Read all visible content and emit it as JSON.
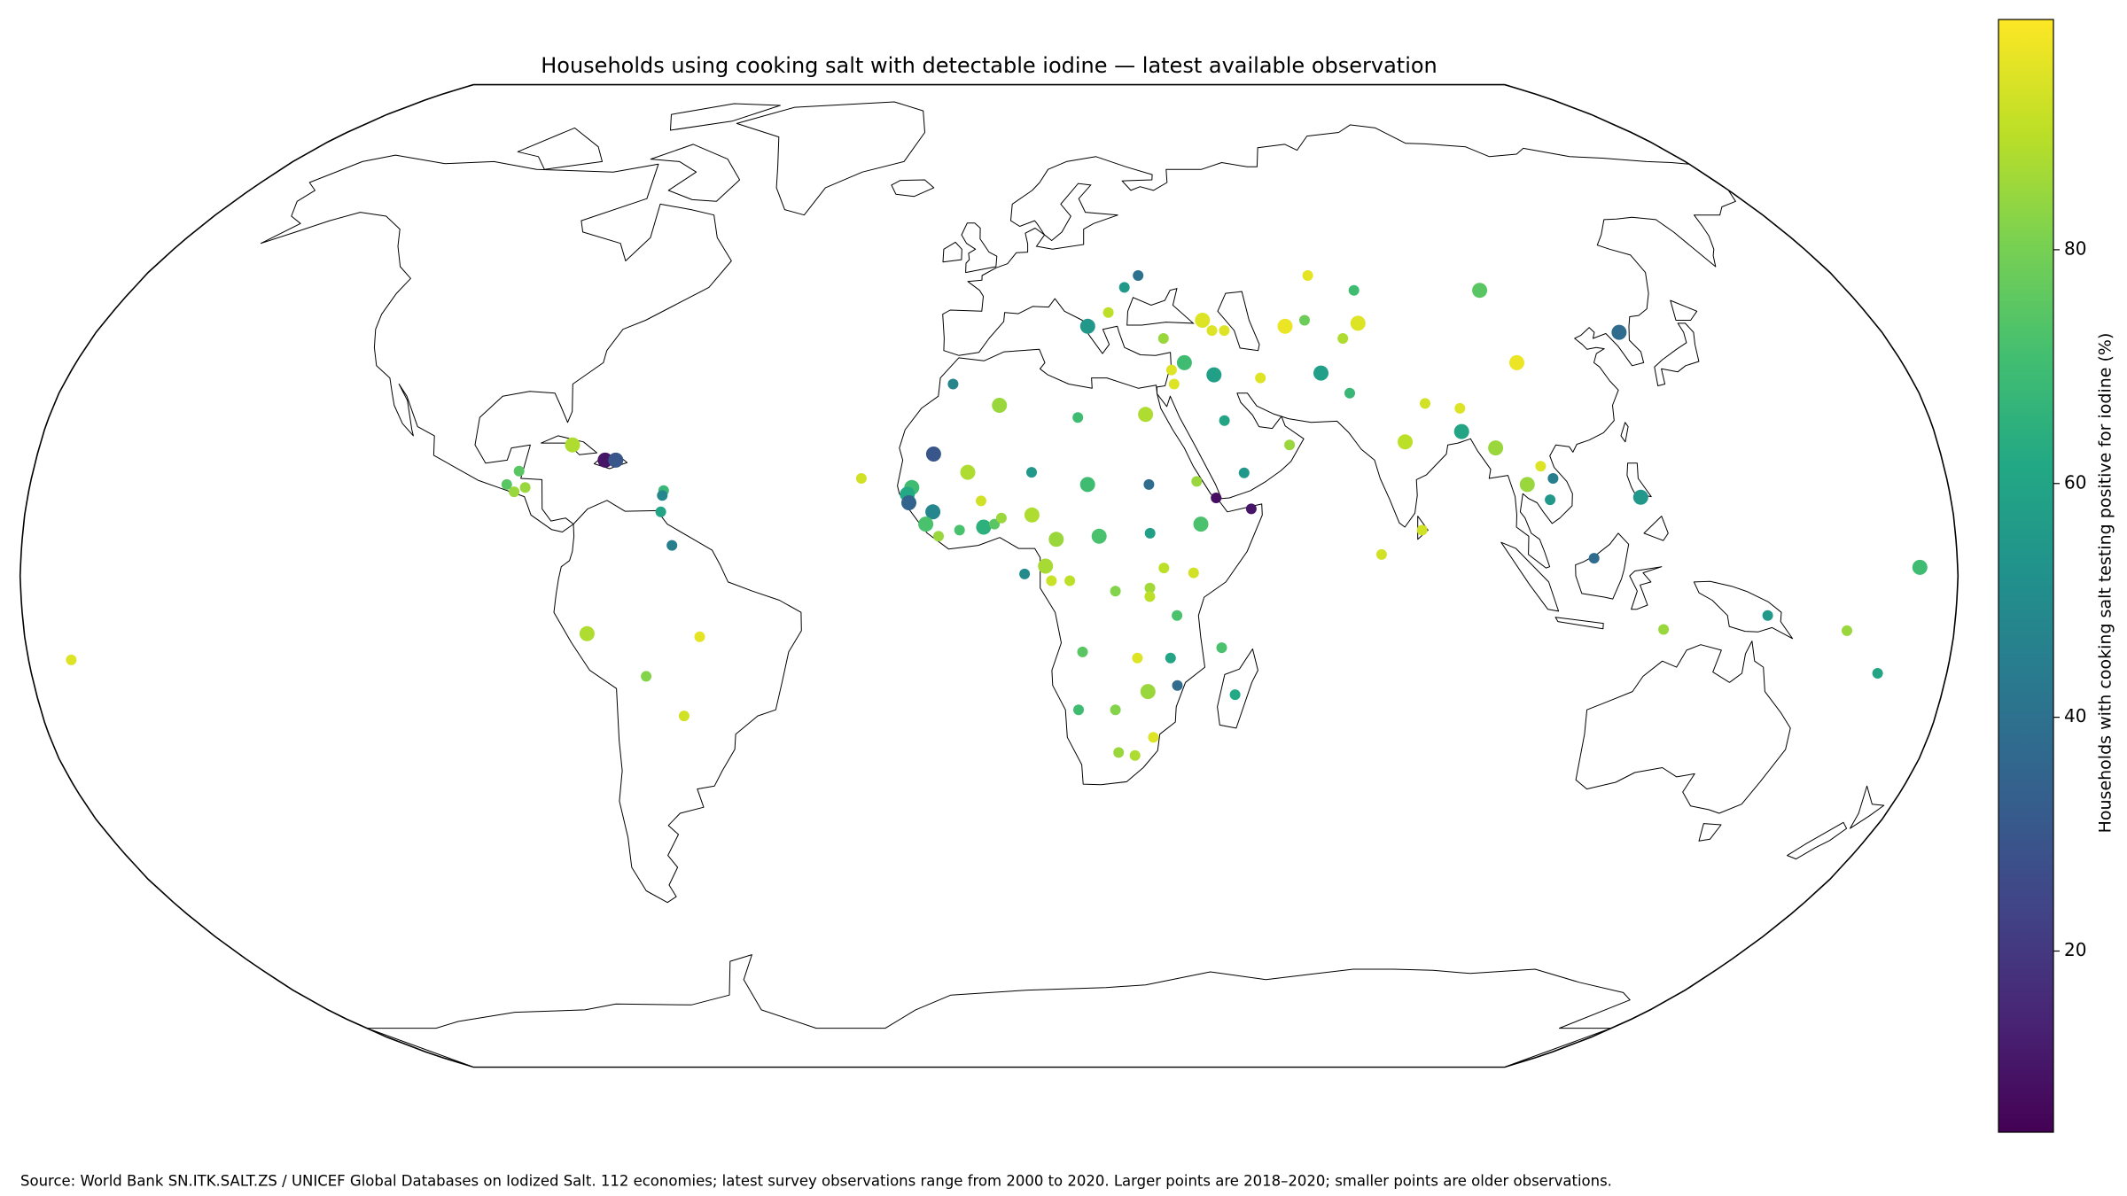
{
  "chart_data": {
    "type": "scatter-map",
    "title": "Households using cooking salt with detectable iodine — latest available observation",
    "colorbar_label": "Households with cooking salt testing positive for iodine (%)",
    "source": "Source: World Bank SN.ITK.SALT.ZS / UNICEF Global Databases on Iodized Salt. 112 economies; latest survey observations range from 2000 to 2020. Larger points are 2018–2020; smaller points are older observations.",
    "projection": "robinson",
    "colormap": "viridis",
    "clim": [
      4.5,
      99.7
    ],
    "cticks": [
      20,
      40,
      60,
      80
    ],
    "lon": [
      -79,
      -72.5,
      -70.5,
      -88.5,
      -90.5,
      -87,
      -89,
      -61,
      -61.2,
      -61.3,
      -59,
      -75,
      -54,
      -64.5,
      -58,
      -172,
      -7,
      2,
      17,
      30,
      -24,
      -14.5,
      -15.3,
      -15,
      -10.5,
      -10.5,
      -11.8,
      -9.4,
      -4,
      -1.5,
      -5.5,
      -1,
      1,
      2.3,
      8,
      8,
      12.5,
      18.5,
      30,
      20.5,
      30,
      39.5,
      39,
      42.5,
      49,
      48,
      10.5,
      6.6,
      11.6,
      15,
      23.5,
      32.5,
      29.9,
      29.9,
      38,
      35,
      17.5,
      34,
      27.8,
      35.5,
      43.5,
      46.5,
      30,
      24,
      17,
      25,
      31.5,
      28.2,
      20,
      24.5,
      28.5,
      31.8,
      35,
      43.5,
      45,
      47.5,
      38.5,
      35.8,
      36,
      44,
      53,
      45,
      57,
      68,
      60,
      64.3,
      71,
      75,
      76.6,
      65,
      69.8,
      79,
      84,
      90.5,
      90,
      103,
      104,
      127,
      96,
      101,
      104,
      106,
      105,
      122,
      112.5,
      125.8,
      145,
      160,
      167,
      173,
      73,
      80.7
    ],
    "lat": [
      21.5,
      19,
      19,
      17.2,
      15,
      14.5,
      13.8,
      14,
      13.2,
      10.5,
      5,
      -9.5,
      -10,
      -16.5,
      -23,
      -13.8,
      31.5,
      28,
      26,
      26.5,
      16,
      14.5,
      13.4,
      12,
      20,
      10.5,
      8.5,
      6.5,
      17,
      12.3,
      7.5,
      8,
      8.5,
      9.5,
      17,
      10,
      6,
      15,
      15,
      6.5,
      7,
      8.5,
      15.5,
      12.8,
      11,
      16.9,
      1.6,
      0.3,
      -0.8,
      -0.8,
      -2.5,
      1.3,
      -2,
      -3.4,
      0.5,
      -6.5,
      -12.5,
      -13.5,
      -13.5,
      -18,
      -11.8,
      -19.5,
      -19,
      -22,
      -22,
      -29,
      -26.5,
      -29.5,
      41,
      43.3,
      47.5,
      49.5,
      39,
      42,
      40.3,
      40.3,
      35,
      33.8,
      31.5,
      33,
      32.5,
      25.5,
      21.5,
      49.5,
      41,
      42,
      39,
      41.5,
      47,
      33.3,
      30,
      22,
      28.3,
      27.5,
      23.7,
      47,
      35,
      40,
      21,
      15,
      18,
      16,
      12.5,
      12.9,
      2.9,
      -8.8,
      -6.5,
      -9,
      -16,
      1.4,
      3.5,
      7.5
    ],
    "values": [
      88,
      10,
      30,
      75,
      75,
      85,
      85,
      68,
      48,
      60,
      45,
      88,
      96,
      82,
      93,
      95,
      47,
      85,
      70,
      88,
      93,
      70,
      62,
      35,
      30,
      48,
      72,
      85,
      88,
      93,
      72,
      65,
      75,
      85,
      55,
      88,
      85,
      70,
      38,
      72,
      58,
      72,
      85,
      8,
      10,
      55,
      87,
      50,
      92,
      90,
      82,
      90,
      86,
      90,
      93,
      72,
      75,
      60,
      95,
      38,
      72,
      62,
      85,
      82,
      70,
      85,
      95,
      88,
      55,
      90,
      55,
      40,
      85,
      95,
      95,
      95,
      70,
      95,
      95,
      58,
      95,
      60,
      85,
      96,
      97,
      78,
      88,
      95,
      70,
      58,
      68,
      90,
      93,
      95,
      60,
      75,
      97,
      38,
      85,
      85,
      95,
      45,
      55,
      55,
      38,
      85,
      55,
      85,
      60,
      70,
      93,
      93
    ],
    "recent": [
      true,
      true,
      true,
      false,
      false,
      false,
      false,
      false,
      false,
      false,
      false,
      true,
      false,
      false,
      false,
      false,
      false,
      true,
      false,
      true,
      false,
      true,
      true,
      true,
      true,
      true,
      true,
      false,
      true,
      false,
      false,
      true,
      false,
      false,
      false,
      true,
      true,
      true,
      false,
      true,
      false,
      true,
      false,
      false,
      false,
      false,
      true,
      false,
      false,
      false,
      false,
      false,
      false,
      false,
      false,
      false,
      false,
      false,
      false,
      false,
      false,
      false,
      true,
      false,
      false,
      false,
      false,
      false,
      true,
      false,
      false,
      false,
      false,
      true,
      false,
      false,
      true,
      false,
      false,
      true,
      false,
      false,
      false,
      false,
      true,
      false,
      false,
      true,
      false,
      true,
      false,
      true,
      false,
      false,
      true,
      true,
      true,
      true,
      true,
      true,
      false,
      false,
      false,
      true,
      false,
      false,
      false,
      false,
      false,
      true,
      false,
      false
    ]
  }
}
